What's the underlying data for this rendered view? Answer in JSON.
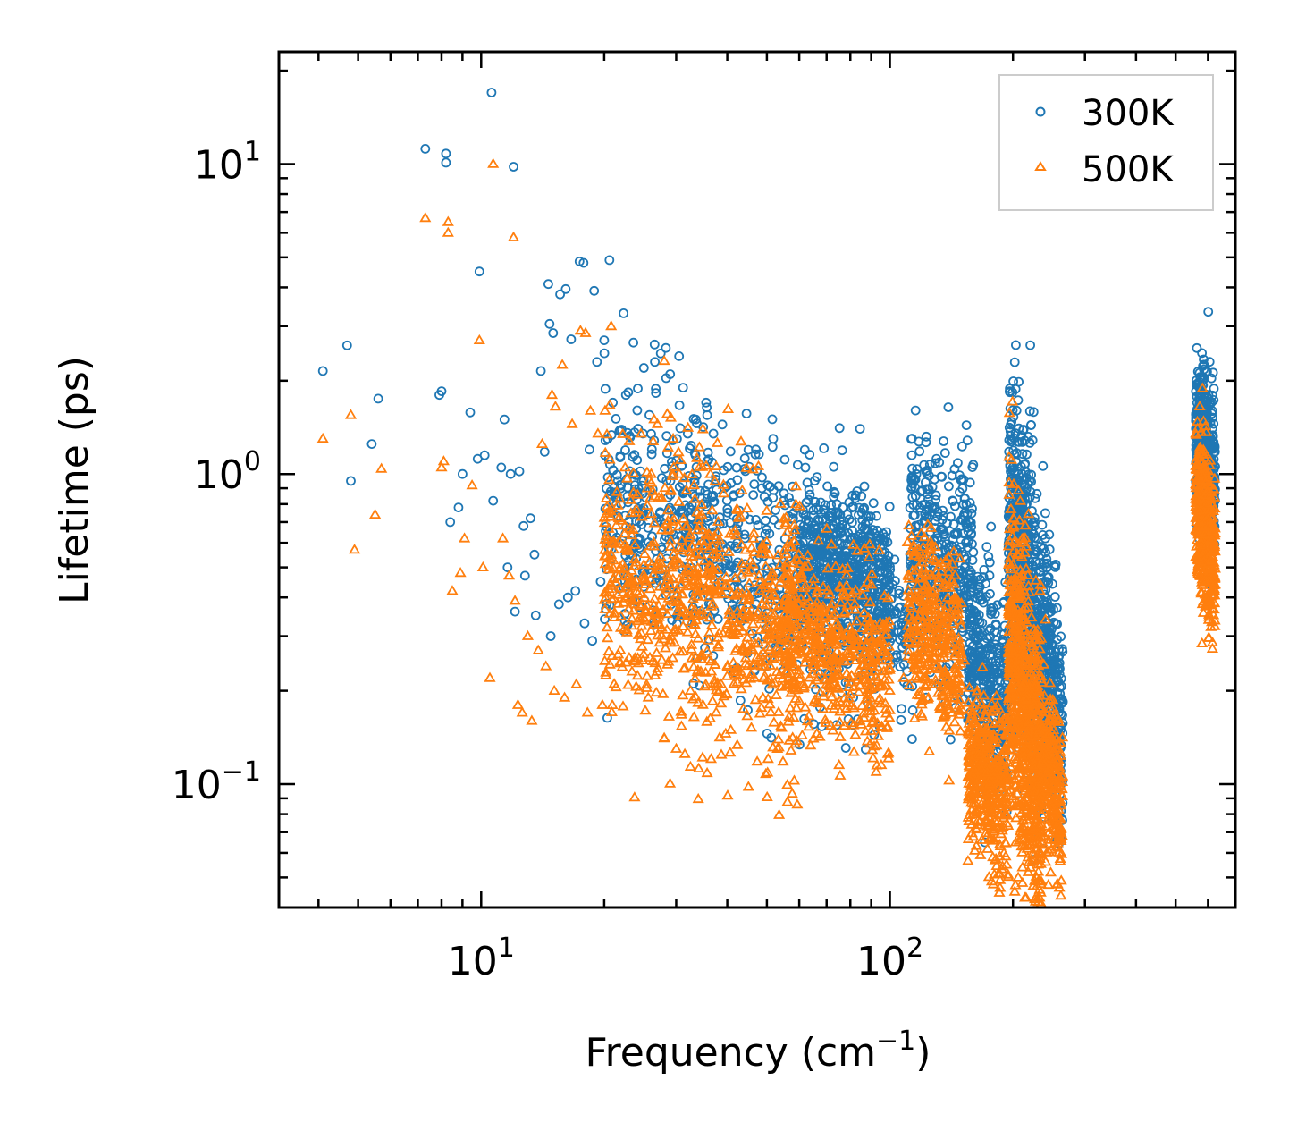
{
  "chart_data": {
    "type": "scatter",
    "title": "",
    "xlabel": "Frequency (cm",
    "xlabel_sup": "−1",
    "xlabel_suffix": ")",
    "ylabel": "Lifetime (ps)",
    "xscale": "log",
    "yscale": "log",
    "xlim": [
      3.2,
      700
    ],
    "ylim": [
      0.04,
      23
    ],
    "x_ticks": [
      {
        "value": 10,
        "base": "10",
        "exp": "1"
      },
      {
        "value": 100,
        "base": "10",
        "exp": "2"
      }
    ],
    "y_ticks": [
      {
        "value": 0.1,
        "base": "10",
        "exp": "−1"
      },
      {
        "value": 1,
        "base": "10",
        "exp": "0"
      },
      {
        "value": 10,
        "base": "10",
        "exp": "1"
      }
    ],
    "legend": {
      "position": "top-right",
      "entries": [
        "300K",
        "500K"
      ]
    },
    "colors": {
      "300K": "#1f77b4",
      "500K": "#ff7f0e"
    },
    "series": [
      {
        "name": "300K",
        "marker": "circle",
        "color": "#1f77b4",
        "points": [
          [
            4.1,
            2.15
          ],
          [
            4.7,
            2.6
          ],
          [
            4.8,
            0.95
          ],
          [
            5.4,
            1.25
          ],
          [
            5.6,
            1.75
          ],
          [
            7.3,
            11.2
          ],
          [
            7.9,
            1.8
          ],
          [
            8.0,
            1.85
          ],
          [
            8.2,
            10.8
          ],
          [
            8.2,
            10.1
          ],
          [
            8.4,
            0.7
          ],
          [
            8.8,
            0.78
          ],
          [
            9.0,
            1.0
          ],
          [
            9.4,
            1.58
          ],
          [
            9.8,
            1.12
          ],
          [
            9.9,
            4.5
          ],
          [
            10.2,
            1.15
          ],
          [
            10.6,
            17.0
          ],
          [
            10.7,
            0.82
          ],
          [
            11.2,
            1.05
          ],
          [
            11.4,
            1.5
          ],
          [
            11.8,
            1.0
          ],
          [
            12.0,
            9.8
          ],
          [
            12.4,
            1.02
          ],
          [
            12.7,
            0.68
          ],
          [
            13.2,
            0.72
          ],
          [
            13.5,
            0.55
          ],
          [
            14.0,
            2.15
          ],
          [
            14.3,
            1.18
          ],
          [
            14.6,
            4.1
          ],
          [
            14.7,
            3.05
          ],
          [
            15.0,
            2.85
          ],
          [
            15.6,
            3.8
          ],
          [
            16.1,
            3.95
          ],
          [
            16.6,
            2.72
          ],
          [
            17.4,
            4.85
          ],
          [
            17.8,
            4.8
          ],
          [
            18.4,
            1.2
          ],
          [
            18.9,
            3.9
          ],
          [
            19.2,
            2.3
          ],
          [
            19.6,
            0.45
          ],
          [
            20.0,
            2.7
          ],
          [
            20.6,
            4.9
          ],
          [
            20.4,
            1.3
          ],
          [
            21.0,
            1.7
          ],
          [
            21.6,
            0.95
          ],
          [
            22.3,
            3.3
          ],
          [
            22.6,
            1.8
          ],
          [
            23.5,
            0.75
          ],
          [
            24.2,
            1.4
          ],
          [
            25.0,
            2.2
          ],
          [
            25.8,
            1.55
          ],
          [
            26.6,
            2.3
          ],
          [
            27.5,
            2.45
          ],
          [
            28.3,
            2.55
          ],
          [
            29.0,
            2.1
          ],
          [
            30.5,
            2.4
          ],
          [
            31.2,
            1.9
          ],
          [
            32.0,
            1.35
          ],
          [
            33.5,
            1.5
          ],
          [
            35.5,
            1.7
          ],
          [
            37.0,
            1.35
          ],
          [
            47.0,
            1.2
          ],
          [
            55.0,
            0.82
          ],
          [
            58.0,
            0.72
          ],
          [
            12.8,
            0.47
          ],
          [
            13.6,
            0.35
          ],
          [
            14.8,
            0.3
          ],
          [
            15.5,
            0.38
          ],
          [
            16.3,
            0.4
          ],
          [
            17.0,
            0.42
          ],
          [
            17.9,
            0.33
          ],
          [
            18.7,
            0.29
          ],
          [
            11.6,
            0.5
          ],
          [
            12.1,
            0.36
          ],
          [
            132,
            1.09
          ],
          [
            134,
            0.98
          ],
          [
            218,
            1.32
          ],
          [
            220,
            1.26
          ],
          [
            214,
            1.08
          ],
          [
            240,
            0.62
          ],
          [
            252,
            0.25
          ],
          [
            258,
            0.18
          ],
          [
            262,
            0.12
          ],
          [
            119,
            0.35
          ]
        ],
        "dense_clusters": [
          {
            "x_range": [
              20,
              95
            ],
            "center": [
              0.75,
              0.38
            ],
            "spread": 0.42,
            "n": 900
          },
          {
            "x_range": [
              60,
              100
            ],
            "center": [
              0.52,
              0.45
            ],
            "spread": 0.25,
            "n": 420
          },
          {
            "x_range": [
              95,
              112
            ],
            "center": [
              0.38,
              0.26
            ],
            "spread": 0.22,
            "n": 80
          },
          {
            "x_range": [
              112,
              160
            ],
            "center": [
              0.6,
              0.45
            ],
            "spread": 0.42,
            "n": 420
          },
          {
            "x_range": [
              155,
              195
            ],
            "center": [
              0.26,
              0.16
            ],
            "spread": 0.38,
            "n": 360
          },
          {
            "x_range": [
              195,
              240
            ],
            "center": [
              0.75,
              0.24
            ],
            "spread": 0.52,
            "n": 700
          },
          {
            "x_range": [
              240,
              265
            ],
            "center": [
              0.3,
              0.13
            ],
            "spread": 0.4,
            "n": 220
          },
          {
            "x_range": [
              560,
              625
            ],
            "center": [
              1.35,
              1.0
            ],
            "spread": 0.28,
            "n": 420
          }
        ]
      },
      {
        "name": "500K",
        "marker": "triangle",
        "color": "#ff7f0e",
        "points": [
          [
            4.1,
            1.3
          ],
          [
            4.8,
            1.55
          ],
          [
            4.9,
            0.57
          ],
          [
            5.5,
            0.74
          ],
          [
            5.7,
            1.04
          ],
          [
            7.3,
            6.7
          ],
          [
            8.0,
            1.05
          ],
          [
            8.1,
            1.1
          ],
          [
            8.3,
            6.5
          ],
          [
            8.3,
            6.0
          ],
          [
            8.5,
            0.42
          ],
          [
            8.9,
            0.48
          ],
          [
            9.1,
            0.62
          ],
          [
            9.5,
            0.92
          ],
          [
            9.9,
            2.7
          ],
          [
            10.1,
            0.5
          ],
          [
            10.7,
            10.0
          ],
          [
            10.5,
            0.22
          ],
          [
            11.3,
            0.62
          ],
          [
            11.7,
            0.47
          ],
          [
            12.0,
            5.8
          ],
          [
            12.3,
            0.18
          ],
          [
            12.6,
            0.17
          ],
          [
            13.3,
            0.16
          ],
          [
            14.1,
            1.25
          ],
          [
            14.9,
            1.8
          ],
          [
            15.2,
            1.65
          ],
          [
            15.8,
            2.25
          ],
          [
            16.7,
            1.45
          ],
          [
            17.5,
            2.9
          ],
          [
            18.0,
            2.85
          ],
          [
            18.5,
            1.6
          ],
          [
            19.3,
            1.35
          ],
          [
            20.1,
            1.6
          ],
          [
            20.8,
            3.0
          ],
          [
            21.7,
            0.72
          ],
          [
            22.5,
            1.05
          ],
          [
            23.8,
            0.75
          ],
          [
            24.6,
            1.35
          ],
          [
            25.5,
            0.9
          ],
          [
            27.0,
            1.45
          ],
          [
            29.5,
            1.3
          ],
          [
            30.0,
            0.13
          ],
          [
            31.5,
            0.125
          ],
          [
            32.5,
            0.2
          ],
          [
            19.8,
            0.18
          ],
          [
            18.2,
            0.17
          ],
          [
            17.1,
            0.21
          ],
          [
            16.0,
            0.19
          ],
          [
            15.1,
            0.2
          ],
          [
            14.4,
            0.24
          ],
          [
            13.8,
            0.27
          ],
          [
            13.0,
            0.3
          ],
          [
            12.1,
            0.39
          ],
          [
            202,
            0.045
          ],
          [
            206,
            0.05
          ],
          [
            211,
            0.048
          ],
          [
            214,
            0.043
          ],
          [
            218,
            0.052
          ],
          [
            260,
            0.07
          ],
          [
            108,
            0.22
          ],
          [
            152,
            0.25
          ],
          [
            256,
            0.14
          ],
          [
            262,
            0.072
          ]
        ],
        "dense_clusters": [
          {
            "x_range": [
              20,
              60
            ],
            "center": [
              0.5,
              0.28
            ],
            "spread": 0.5,
            "n": 850
          },
          {
            "x_range": [
              55,
              100
            ],
            "center": [
              0.33,
              0.22
            ],
            "spread": 0.32,
            "n": 520
          },
          {
            "x_range": [
              110,
              150
            ],
            "center": [
              0.36,
              0.26
            ],
            "spread": 0.33,
            "n": 360
          },
          {
            "x_range": [
              155,
              195
            ],
            "center": [
              0.12,
              0.085
            ],
            "spread": 0.28,
            "n": 420
          },
          {
            "x_range": [
              195,
              235
            ],
            "center": [
              0.3,
              0.095
            ],
            "spread": 0.55,
            "n": 800
          },
          {
            "x_range": [
              235,
              265
            ],
            "center": [
              0.12,
              0.08
            ],
            "spread": 0.3,
            "n": 260
          },
          {
            "x_range": [
              560,
              625
            ],
            "center": [
              0.8,
              0.55
            ],
            "spread": 0.3,
            "n": 420
          }
        ]
      }
    ]
  }
}
